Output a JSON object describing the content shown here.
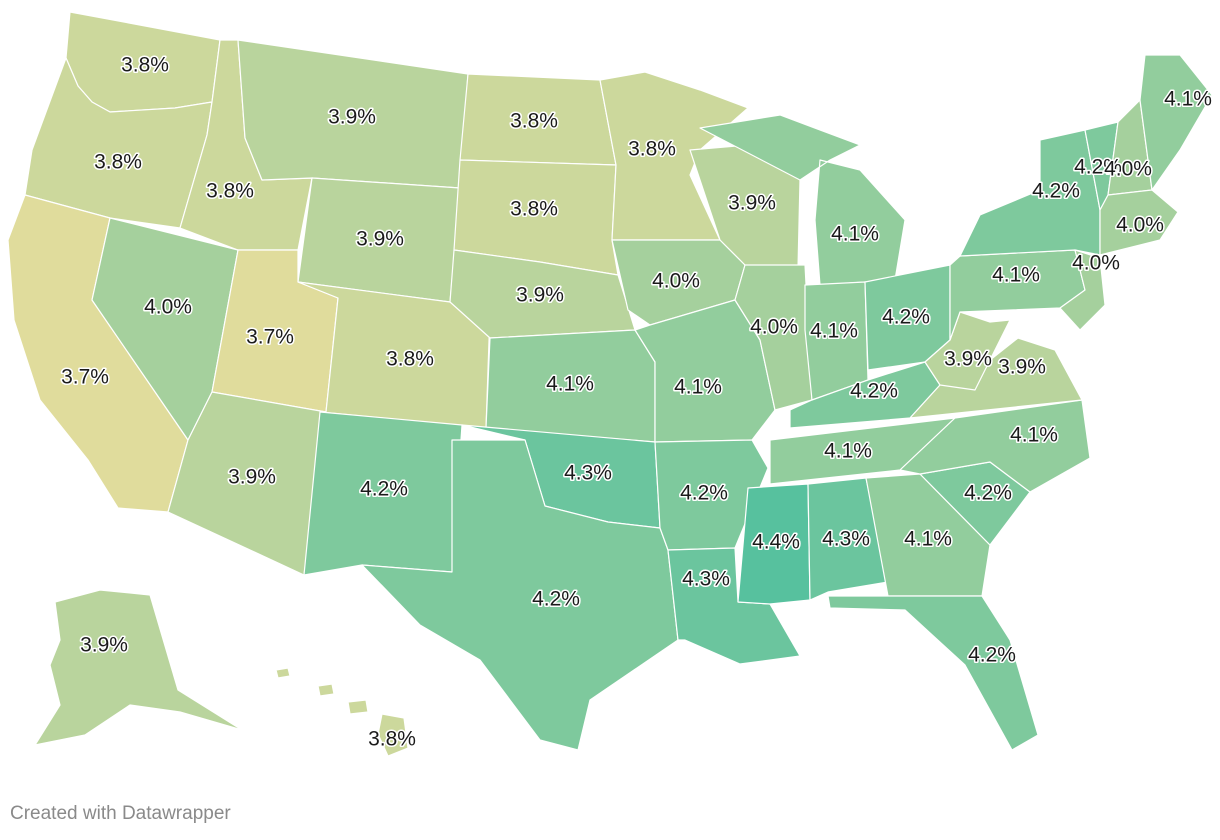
{
  "credit": "Created with Datawrapper",
  "color_scale": {
    "min": 3.7,
    "max": 4.4,
    "low_color": "#e0dc9c",
    "high_color": "#57c19e"
  },
  "states": [
    {
      "id": "WA",
      "value": "3.8%"
    },
    {
      "id": "OR",
      "value": "3.8%"
    },
    {
      "id": "CA",
      "value": "3.7%"
    },
    {
      "id": "ID",
      "value": "3.8%"
    },
    {
      "id": "NV",
      "value": "4.0%"
    },
    {
      "id": "MT",
      "value": "3.9%"
    },
    {
      "id": "WY",
      "value": "3.9%"
    },
    {
      "id": "UT",
      "value": "3.7%"
    },
    {
      "id": "AZ",
      "value": "3.9%"
    },
    {
      "id": "CO",
      "value": "3.8%"
    },
    {
      "id": "NM",
      "value": "4.2%"
    },
    {
      "id": "ND",
      "value": "3.8%"
    },
    {
      "id": "SD",
      "value": "3.8%"
    },
    {
      "id": "NE",
      "value": "3.9%"
    },
    {
      "id": "KS",
      "value": "4.1%"
    },
    {
      "id": "OK",
      "value": "4.3%"
    },
    {
      "id": "TX",
      "value": "4.2%"
    },
    {
      "id": "MN",
      "value": "3.8%"
    },
    {
      "id": "IA",
      "value": "4.0%"
    },
    {
      "id": "MO",
      "value": "4.1%"
    },
    {
      "id": "AR",
      "value": "4.2%"
    },
    {
      "id": "LA",
      "value": "4.3%"
    },
    {
      "id": "WI",
      "value": "3.9%"
    },
    {
      "id": "IL",
      "value": "4.0%"
    },
    {
      "id": "MI",
      "value": "4.1%"
    },
    {
      "id": "IN",
      "value": "4.1%"
    },
    {
      "id": "OH",
      "value": "4.2%"
    },
    {
      "id": "KY",
      "value": "4.2%"
    },
    {
      "id": "TN",
      "value": "4.1%"
    },
    {
      "id": "MS",
      "value": "4.4%"
    },
    {
      "id": "AL",
      "value": "4.3%"
    },
    {
      "id": "GA",
      "value": "4.1%"
    },
    {
      "id": "FL",
      "value": "4.2%"
    },
    {
      "id": "SC",
      "value": "4.2%"
    },
    {
      "id": "NC",
      "value": "4.1%"
    },
    {
      "id": "VA",
      "value": "3.9%"
    },
    {
      "id": "WV",
      "value": "3.9%"
    },
    {
      "id": "PA",
      "value": "4.1%"
    },
    {
      "id": "NY",
      "value": "4.2%"
    },
    {
      "id": "NJ",
      "value": "4.0%"
    },
    {
      "id": "VT",
      "value": "4.2%"
    },
    {
      "id": "NH",
      "value": "4.0%"
    },
    {
      "id": "ME",
      "value": "4.1%"
    },
    {
      "id": "MA",
      "value": "4.0%"
    },
    {
      "id": "AK",
      "value": "3.9%"
    },
    {
      "id": "HI",
      "value": "3.8%"
    }
  ]
}
